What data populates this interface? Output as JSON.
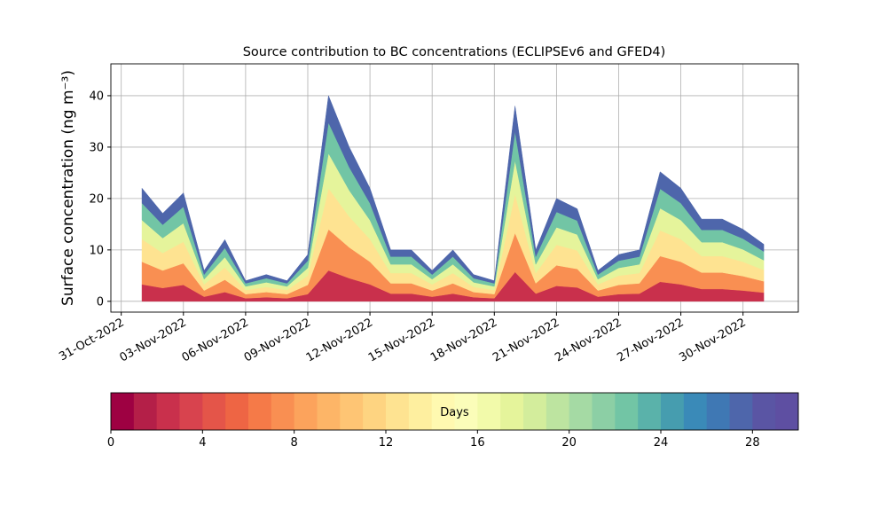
{
  "chart_data": {
    "type": "stacked_area",
    "title": "Source contribution to BC concentrations (ECLIPSEv6 and GFED4)",
    "y_label": "Surface concentration (ng m⁻³)",
    "x": [
      "01-Nov-2022",
      "02-Nov-2022",
      "03-Nov-2022",
      "04-Nov-2022",
      "05-Nov-2022",
      "06-Nov-2022",
      "07-Nov-2022",
      "08-Nov-2022",
      "09-Nov-2022",
      "10-Nov-2022",
      "11-Nov-2022",
      "12-Nov-2022",
      "13-Nov-2022",
      "14-Nov-2022",
      "15-Nov-2022",
      "16-Nov-2022",
      "17-Nov-2022",
      "18-Nov-2022",
      "19-Nov-2022",
      "20-Nov-2022",
      "21-Nov-2022",
      "22-Nov-2022",
      "23-Nov-2022",
      "24-Nov-2022",
      "25-Nov-2022",
      "26-Nov-2022",
      "27-Nov-2022",
      "28-Nov-2022",
      "29-Nov-2022",
      "30-Nov-2022",
      "01-Dec-2022"
    ],
    "series": [
      {
        "color": "#c9304c",
        "values": [
          3.3,
          2.6,
          3.2,
          0.9,
          1.8,
          0.6,
          0.8,
          0.6,
          1.4,
          6,
          4.5,
          3.3,
          1.5,
          1.5,
          0.9,
          1.5,
          0.8,
          0.6,
          5.7,
          1.5,
          3,
          2.7,
          0.9,
          1.4,
          1.5,
          3.8,
          3.3,
          2.4,
          2.4,
          2.1,
          1.7
        ]
      },
      {
        "color": "#f98f52",
        "values": [
          4.4,
          3.4,
          4.2,
          1.2,
          2.4,
          0.8,
          1,
          0.8,
          1.8,
          8,
          6,
          4.4,
          2,
          2,
          1.2,
          2,
          1,
          0.8,
          7.6,
          2,
          4,
          3.6,
          1.2,
          1.8,
          2,
          5,
          4.4,
          3.2,
          3.2,
          2.8,
          2.2
        ]
      },
      {
        "color": "#fee391",
        "values": [
          4.4,
          3.4,
          4.2,
          1.2,
          2.4,
          0.8,
          1,
          0.8,
          1.8,
          8,
          6,
          4.4,
          2,
          2,
          1.2,
          2,
          1,
          0.8,
          7.6,
          2,
          4,
          3.6,
          1.2,
          1.8,
          2,
          5,
          4.4,
          3.2,
          3.2,
          2.8,
          2.2
        ]
      },
      {
        "color": "#e5f49b",
        "values": [
          3.7,
          2.9,
          3.6,
          1,
          2,
          0.7,
          0.9,
          0.7,
          1.5,
          6.8,
          5.1,
          3.7,
          1.7,
          1.7,
          1,
          1.7,
          0.9,
          0.7,
          6.5,
          1.7,
          3.4,
          3.1,
          1,
          1.5,
          1.7,
          4.3,
          3.7,
          2.7,
          2.7,
          2.4,
          1.9
        ]
      },
      {
        "color": "#72c5a5",
        "values": [
          3.3,
          2.6,
          3.2,
          0.9,
          1.8,
          0.6,
          0.8,
          0.6,
          1.4,
          6,
          4.5,
          3.3,
          1.5,
          1.5,
          0.9,
          1.5,
          0.8,
          0.6,
          5.7,
          1.5,
          3,
          2.7,
          0.9,
          1.4,
          1.5,
          3.8,
          3.3,
          2.4,
          2.4,
          2.1,
          1.7
        ]
      },
      {
        "color": "#4e66ab",
        "values": [
          2.9,
          2.2,
          2.7,
          0.8,
          1.6,
          0.5,
          0.7,
          0.5,
          1.2,
          5.2,
          3.9,
          2.9,
          1.3,
          1.3,
          0.8,
          1.3,
          0.7,
          0.5,
          4.9,
          1.3,
          2.6,
          2.3,
          0.8,
          1.2,
          1.3,
          3.3,
          2.9,
          2.1,
          2.1,
          1.8,
          1.4
        ]
      }
    ],
    "xlim": [
      "30-Oct-2022 12:00",
      "02-Dec-2022 16:00"
    ],
    "xticks": [
      "31-Oct-2022",
      "03-Nov-2022",
      "06-Nov-2022",
      "09-Nov-2022",
      "12-Nov-2022",
      "15-Nov-2022",
      "18-Nov-2022",
      "21-Nov-2022",
      "24-Nov-2022",
      "27-Nov-2022",
      "30-Nov-2022"
    ],
    "ylim": [
      -2.1,
      46.2
    ],
    "yticks": [
      0,
      10,
      20,
      30,
      40
    ],
    "grid": true,
    "colorbar": {
      "label": "Days",
      "lim": [
        0,
        30
      ],
      "ticks": [
        0,
        4,
        8,
        12,
        16,
        20,
        24,
        28
      ],
      "colors": [
        "#9e0142",
        "#b41f48",
        "#c9304c",
        "#d8434e",
        "#e45549",
        "#ee6544",
        "#f57a48",
        "#f98f52",
        "#fca35c",
        "#fdb567",
        "#fec574",
        "#fed481",
        "#fee391",
        "#feef9f",
        "#fff9b0",
        "#fbfdb9",
        "#f2faaa",
        "#e5f49b",
        "#d3ed9c",
        "#bde4a0",
        "#a5daa4",
        "#8ccfa5",
        "#72c5a5",
        "#5ab2aa",
        "#469daf",
        "#3a8ab8",
        "#3f78b4",
        "#4e66ab",
        "#5a55a4",
        "#5e4fa2"
      ]
    }
  }
}
